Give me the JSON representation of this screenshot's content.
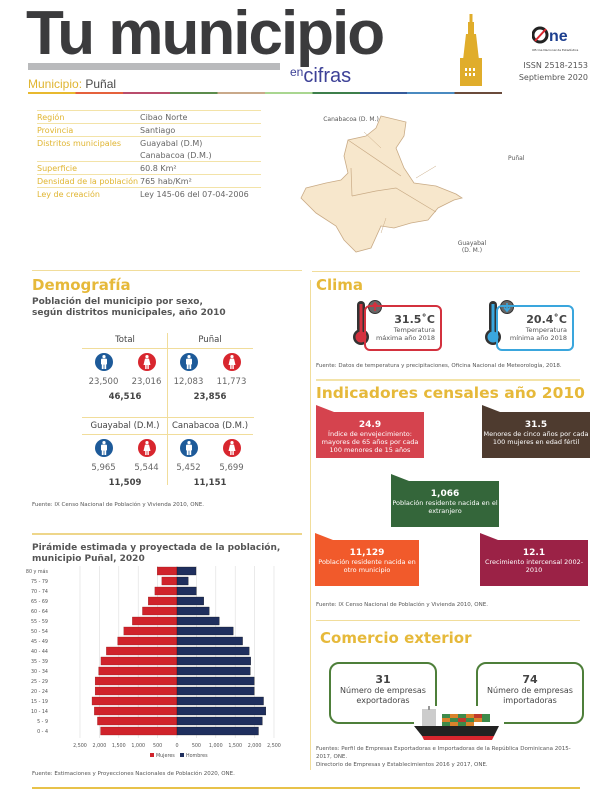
{
  "header": {
    "title": "Tu municipio",
    "subtitle_small": "en",
    "subtitle": "cifras",
    "municipio_label": "Municipio:",
    "municipio": "Puñal",
    "logo_text": "ONE",
    "logo_sub": "Oficina Nacional de Estadística",
    "issn": "ISSN 2518-2153",
    "date": "Septiembre 2020"
  },
  "info": [
    {
      "k": "Región",
      "v": "Cibao Norte"
    },
    {
      "k": "Provincia",
      "v": "Santiago"
    },
    {
      "k": "Distritos municipales",
      "v": "Guayabal (D.M)"
    },
    {
      "k": "",
      "v": "Canabacoa (D.M.)"
    },
    {
      "k": "Superficie",
      "v": "60.8 Km²"
    },
    {
      "k": "Densidad de la población",
      "v": "765 hab/Km²"
    },
    {
      "k": "Ley de creación",
      "v": "Ley 145-06 del 07-04-2006"
    }
  ],
  "map": {
    "labels": [
      "Canabacoa (D. M.)",
      "Puñal",
      "Guayabal (D. M.)"
    ],
    "fill": "#f7e7cc"
  },
  "demografia": {
    "title": "Demografía",
    "subtitle1": "Población del municipio por sexo,",
    "subtitle2": "según distritos municipales, año 2010",
    "cells": [
      {
        "name": "Total",
        "men": "23,500",
        "women": "23,016",
        "total": "46,516"
      },
      {
        "name": "Puñal",
        "men": "12,083",
        "women": "11,773",
        "total": "23,856"
      },
      {
        "name": "Guayabal (D.M.)",
        "men": "5,965",
        "women": "5,544",
        "total": "11,509"
      },
      {
        "name": "Canabacoa (D.M.)",
        "men": "5,452",
        "women": "5,699",
        "total": "11,151"
      }
    ],
    "source": "Fuente: IX Censo Nacional de Población y Vivienda 2010, ONE.",
    "colors": {
      "men": "#1d5a99",
      "women": "#d8262e"
    }
  },
  "piramide": {
    "title1": "Pirámide estimada y proyectada de la población,",
    "title2": "municipio Puñal, 2020",
    "source": "Fuente: Estimaciones y Proyecciones Nacionales de Población 2020, ONE.",
    "chart_data": {
      "type": "bar",
      "orientation": "horizontal-pyramid",
      "categories": [
        "80 y más",
        "75 - 79",
        "70 - 74",
        "65 - 69",
        "60 - 64",
        "55 - 59",
        "50 - 54",
        "45 - 49",
        "40 - 44",
        "35 - 39",
        "30 - 34",
        "25 - 29",
        "20 - 24",
        "15 - 19",
        "10 - 14",
        "5 - 9",
        "0 - 4"
      ],
      "series": [
        {
          "name": "Mujeres",
          "color": "#d0232b",
          "values": [
            510,
            390,
            570,
            740,
            890,
            1150,
            1370,
            1530,
            1820,
            1960,
            2020,
            2110,
            2110,
            2190,
            2130,
            2050,
            1970
          ]
        },
        {
          "name": "Hombres",
          "color": "#1f2f5e",
          "values": [
            490,
            290,
            500,
            690,
            830,
            1090,
            1450,
            1690,
            1860,
            1900,
            1890,
            1990,
            1990,
            2230,
            2290,
            2200,
            2100
          ]
        }
      ],
      "xticks": [
        "2,500",
        "2,000",
        "1,500",
        "1,000",
        "500",
        "0",
        "500",
        "1,000",
        "1,500",
        "2,000",
        "2,500"
      ],
      "xlim": [
        -2500,
        2500
      ],
      "grid": true,
      "legend": "bottom"
    }
  },
  "clima": {
    "title": "Clima",
    "max": {
      "value": "31.5˚C",
      "l1": "Temperatura",
      "l2": "máxima año 2018",
      "color": "#d3313e"
    },
    "min": {
      "value": "20.4˚C",
      "l1": "Temperatura",
      "l2": "mínima año 2018",
      "color": "#3aa6dd"
    },
    "source": "Fuente: Datos de temperatura y precipitaciones, Oficina Nacional de Meteorología, 2018."
  },
  "indicadores": {
    "title": "Indicadores censales año 2010",
    "items": [
      {
        "value": "24.9",
        "text": "Índice de envejecimiento: mayores de 65 años por cada 100 menores de 15 años",
        "color": "#d5434e"
      },
      {
        "value": "31.5",
        "text": "Menores de cinco años por cada 100 mujeres en edad fértil",
        "color": "#4e3b2f"
      },
      {
        "value": "1,066",
        "text": "Población residente nacida en el extranjero",
        "color": "#34663a"
      },
      {
        "value": "11,129",
        "text": "Población residente nacida en otro municipio",
        "color": "#f15a2b"
      },
      {
        "value": "12.1",
        "text": "Crecimiento intercensal 2002-2010",
        "color": "#9b2246"
      }
    ],
    "source": "Fuente: IX Censo Nacional de Población y Vivienda 2010, ONE."
  },
  "comercio": {
    "title": "Comercio exterior",
    "export": {
      "value": "31",
      "text": "Número de empresas exportadoras"
    },
    "import": {
      "value": "74",
      "text": "Número de empresas importadoras"
    },
    "source1": "Fuentes: Perfil de Empresas Exportadoras e Importadoras de la República Dominicana 2015-2017, ONE.",
    "source2": "Directorio de Empresas y Establecimientos 2016 y 2017, ONE."
  }
}
